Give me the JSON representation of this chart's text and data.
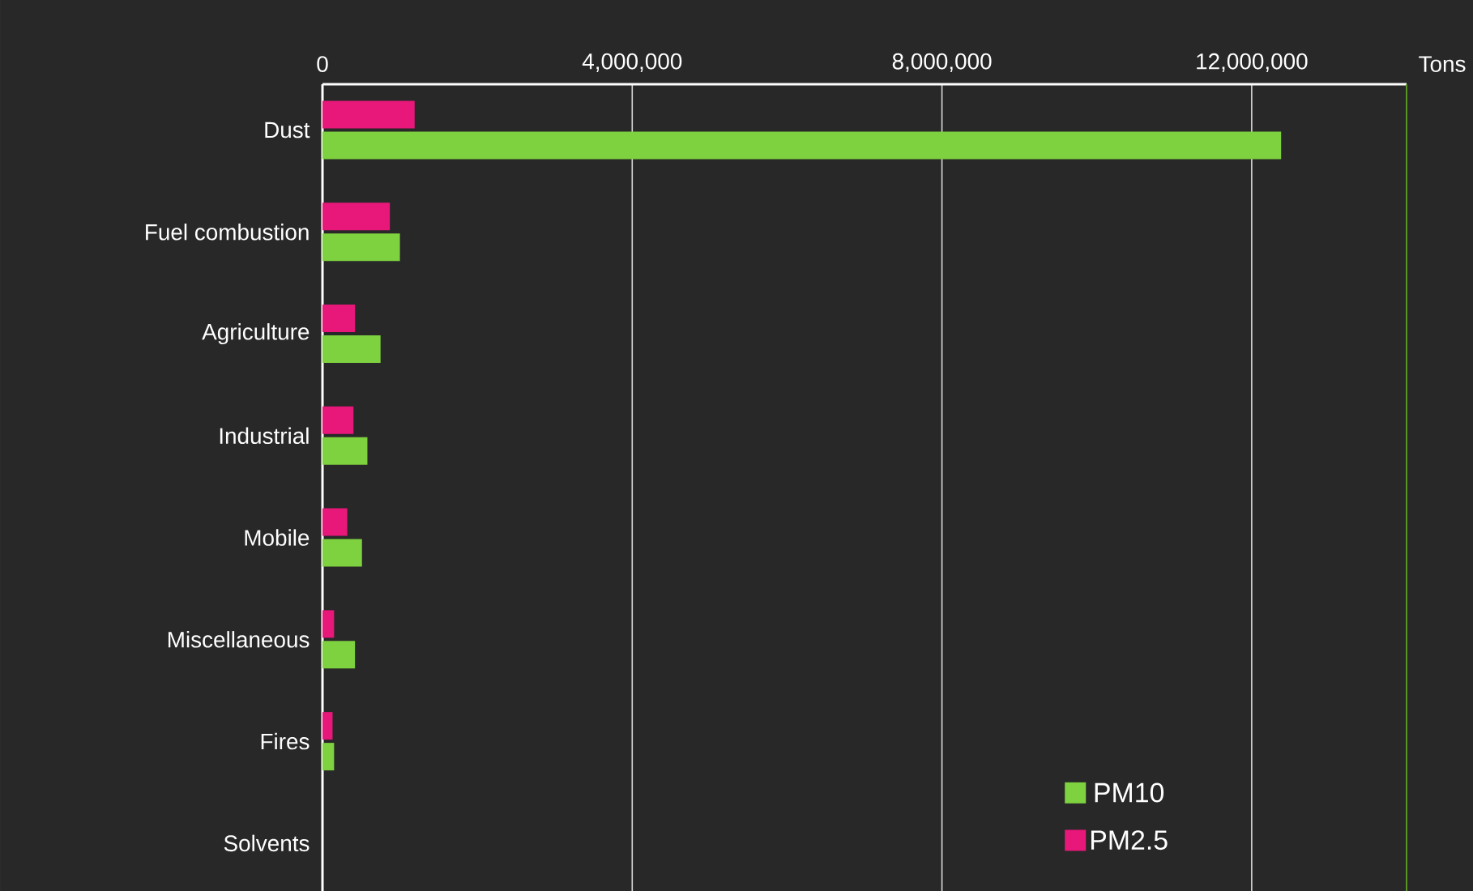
{
  "chart_data": {
    "type": "bar",
    "orientation": "horizontal",
    "xlabel": "Tons",
    "categories": [
      "Dust",
      "Fuel combustion",
      "Agriculture",
      "Industrial",
      "Mobile",
      "Miscellaneous",
      "Fires",
      "Solvents"
    ],
    "series": [
      {
        "name": "PM10",
        "color": "#7ed13f",
        "values": [
          12380000,
          1000000,
          750000,
          580000,
          510000,
          420000,
          150000,
          0
        ]
      },
      {
        "name": "PM2.5",
        "color": "#e8177a",
        "values": [
          1190000,
          870000,
          420000,
          400000,
          320000,
          150000,
          130000,
          0
        ]
      }
    ],
    "xlim": [
      0,
      14000000
    ],
    "xticks": [
      0,
      {
        "value": 4000000,
        "label": "4,000,000"
      },
      {
        "value": 8000000,
        "label": "8,000,000"
      },
      {
        "value": 12000000,
        "label": "12,000,000"
      }
    ],
    "grid": "x",
    "legend": "bottom right"
  }
}
